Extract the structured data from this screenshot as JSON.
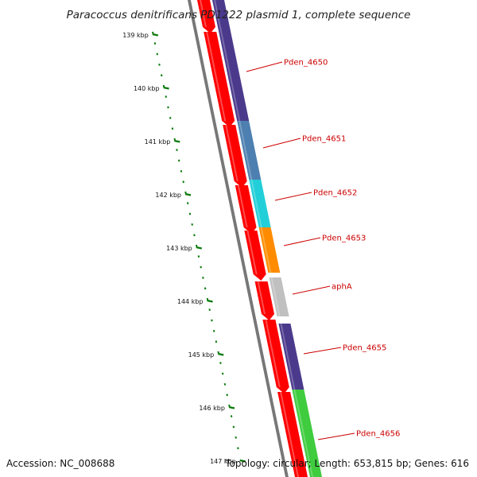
{
  "title": "Paracoccus denitrificans PD1222 plasmid 1, complete sequence",
  "accession": "Accession: NC_008688",
  "summary": "Topology: circular; Length: 653,815 bp; Genes: 616",
  "ticks": [
    "139 kbp",
    "140 kbp",
    "141 kbp",
    "142 kbp",
    "143 kbp",
    "144 kbp",
    "145 kbp",
    "146 kbp",
    "147 kbp"
  ],
  "genes": [
    {
      "label": "Pden_4650",
      "color": "#4b3a8c"
    },
    {
      "label": "Pden_4651",
      "color": "#4d7fb0"
    },
    {
      "label": "Pden_4652",
      "color": "#22cfd8"
    },
    {
      "label": "Pden_4653",
      "color": "#ff8c00"
    },
    {
      "label": "aphA",
      "color": "#c0c0c0"
    },
    {
      "label": "Pden_4655",
      "color": "#4b3a8c"
    },
    {
      "label": "Pden_4656",
      "color": "#3fcc3f"
    }
  ],
  "colors": {
    "cds": "#ff0000",
    "tick": "#0a7a0a",
    "label": "#cc0000",
    "backbone": "#777777"
  }
}
